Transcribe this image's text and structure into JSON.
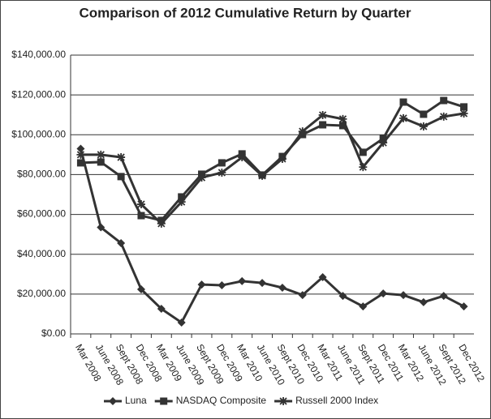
{
  "chart_data": {
    "type": "line",
    "title": "Comparison of 2012 Cumulative Return by Quarter",
    "categories": [
      "Mar 2008",
      "June 2008",
      "Sept 2008",
      "Dec 2008",
      "Mar 2009",
      "June 2009",
      "Sept 2009",
      "Dec 2009",
      "Mar 2010",
      "June 2010",
      "Sept 2010",
      "Dec 2010",
      "Mar 2011",
      "June 2011",
      "Sept 2011",
      "Dec 2011",
      "Mar 2012",
      "June 2012",
      "Sept 2012",
      "Dec 2012"
    ],
    "series": [
      {
        "name": "Luna",
        "color": "#333333",
        "marker": "diamond",
        "values": [
          93000,
          53500,
          45600,
          22400,
          12600,
          5700,
          24800,
          24400,
          26500,
          25600,
          23200,
          19500,
          28500,
          19100,
          13800,
          20300,
          19500,
          15900,
          19100,
          13800
        ]
      },
      {
        "name": "NASDAQ Composite",
        "color": "#333333",
        "marker": "square",
        "values": [
          85900,
          86300,
          79000,
          59400,
          57000,
          68800,
          80200,
          85900,
          90400,
          79800,
          89100,
          100100,
          105000,
          104600,
          91200,
          98100,
          116400,
          110300,
          117200,
          114000
        ]
      },
      {
        "name": "Russell 2000 Index",
        "color": "#333333",
        "marker": "asterisk",
        "values": [
          90000,
          90000,
          88700,
          65100,
          55400,
          66300,
          78500,
          81000,
          88700,
          79400,
          87900,
          101700,
          109900,
          107900,
          83800,
          96000,
          108300,
          104200,
          109100,
          110700
        ]
      }
    ],
    "ylim": [
      0,
      140000
    ],
    "yticks": [
      {
        "value": 0,
        "label": "$0.00"
      },
      {
        "value": 20000,
        "label": "$20,000.00"
      },
      {
        "value": 40000,
        "label": "$40,000.00"
      },
      {
        "value": 60000,
        "label": "$60,000.00"
      },
      {
        "value": 80000,
        "label": "$80,000.00"
      },
      {
        "value": 100000,
        "label": "$100,000.00"
      },
      {
        "value": 120000,
        "label": "$120,000.00"
      },
      {
        "value": 140000,
        "label": "$140,000.00"
      }
    ],
    "grid": true,
    "legend": "bottom"
  }
}
